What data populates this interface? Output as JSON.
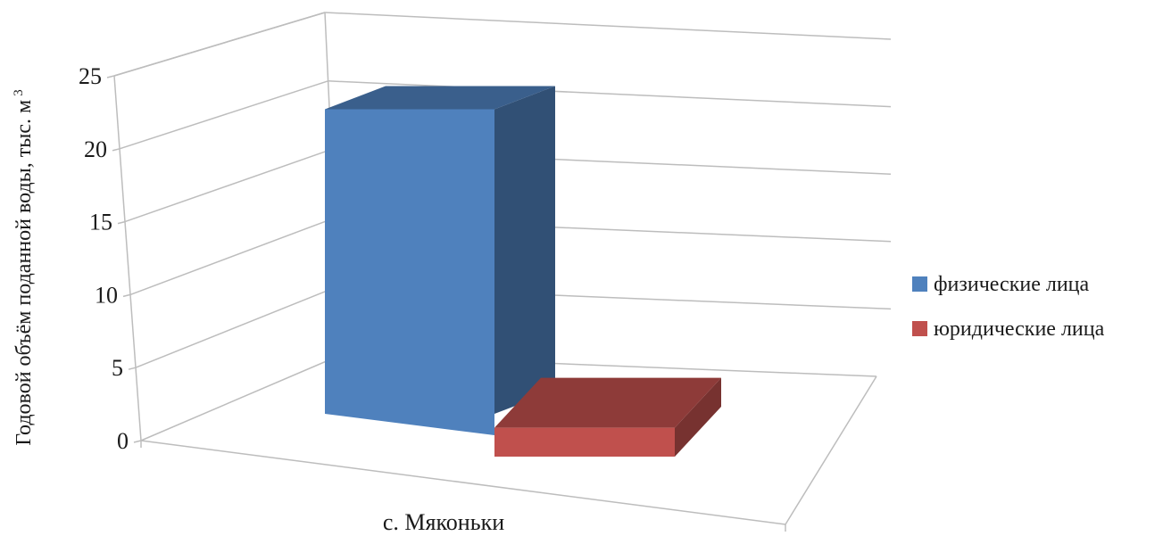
{
  "chart_data": {
    "type": "bar",
    "categories": [
      "с. Мяконьки"
    ],
    "series": [
      {
        "name": "физические лица",
        "values": [
          23.2
        ],
        "color": "#4F81BD"
      },
      {
        "name": "юридические лица",
        "values": [
          2.2
        ],
        "color": "#C0504D"
      }
    ],
    "ylabel_text": "Годовой объём поданной воды, тыс. м",
    "ylabel_superscript": "3",
    "yticks": [
      "0",
      "5",
      "10",
      "15",
      "20",
      "25"
    ],
    "ylim": [
      0,
      25
    ],
    "grid": true,
    "legend": "right",
    "style": "3d"
  }
}
